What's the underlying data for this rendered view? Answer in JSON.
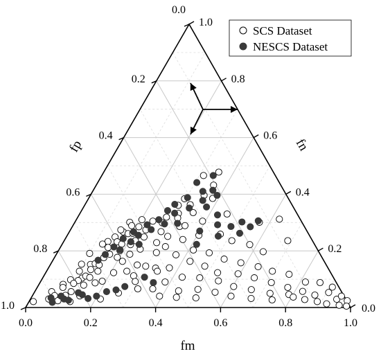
{
  "chart_data": {
    "type": "scatter",
    "subtype": "ternary",
    "axes": {
      "bottom": {
        "label": "fm",
        "ticks": [
          "0.0",
          "0.2",
          "0.4",
          "0.6",
          "0.8",
          "1.0"
        ]
      },
      "left": {
        "label": "fp",
        "ticks": [
          "0.0",
          "0.2",
          "0.4",
          "0.6",
          "0.8",
          "1.0"
        ]
      },
      "right": {
        "label": "fn",
        "ticks": [
          "0.0",
          "0.2",
          "0.4",
          "0.6",
          "0.8",
          "1.0"
        ]
      }
    },
    "grid": true,
    "grid_step": 0.1,
    "legend_position": "top-right",
    "series": [
      {
        "name": "SCS Dataset",
        "marker": "open-circle",
        "color": "#000000",
        "points": [
          {
            "fm": 0.013,
            "fn": 0.021
          },
          {
            "fm": 0.052,
            "fn": 0.056
          },
          {
            "fm": 0.056,
            "fn": 0.03
          },
          {
            "fm": 0.068,
            "fn": 0.042
          },
          {
            "fm": 0.074,
            "fn": 0.082
          },
          {
            "fm": 0.087,
            "fn": 0.024
          },
          {
            "fm": 0.079,
            "fn": 0.071
          },
          {
            "fm": 0.126,
            "fn": 0.021
          },
          {
            "fm": 0.089,
            "fn": 0.098
          },
          {
            "fm": 0.101,
            "fn": 0.043
          },
          {
            "fm": 0.101,
            "fn": 0.128
          },
          {
            "fm": 0.121,
            "fn": 0.104
          },
          {
            "fm": 0.114,
            "fn": 0.095
          },
          {
            "fm": 0.105,
            "fn": 0.085
          },
          {
            "fm": 0.129,
            "fn": 0.111
          },
          {
            "fm": 0.139,
            "fn": 0.079
          },
          {
            "fm": 0.095,
            "fn": 0.153
          },
          {
            "fm": 0.101,
            "fn": 0.191
          },
          {
            "fm": 0.123,
            "fn": 0.152
          },
          {
            "fm": 0.152,
            "fn": 0.176
          },
          {
            "fm": 0.136,
            "fn": 0.155
          },
          {
            "fm": 0.144,
            "fn": 0.106
          },
          {
            "fm": 0.146,
            "fn": 0.041
          },
          {
            "fm": 0.112,
            "fn": 0.056
          },
          {
            "fm": 0.133,
            "fn": 0.134
          },
          {
            "fm": 0.136,
            "fn": 0.233
          },
          {
            "fm": 0.147,
            "fn": 0.212
          },
          {
            "fm": 0.124,
            "fn": 0.224
          },
          {
            "fm": 0.164,
            "fn": 0.188
          },
          {
            "fm": 0.15,
            "fn": 0.249
          },
          {
            "fm": 0.151,
            "fn": 0.15
          },
          {
            "fm": 0.158,
            "fn": 0.128
          },
          {
            "fm": 0.17,
            "fn": 0.087
          },
          {
            "fm": 0.166,
            "fn": 0.267
          },
          {
            "fm": 0.155,
            "fn": 0.274
          },
          {
            "fm": 0.165,
            "fn": 0.232
          },
          {
            "fm": 0.189,
            "fn": 0.201
          },
          {
            "fm": 0.189,
            "fn": 0.093
          },
          {
            "fm": 0.169,
            "fn": 0.301
          },
          {
            "fm": 0.181,
            "fn": 0.289
          },
          {
            "fm": 0.184,
            "fn": 0.261
          },
          {
            "fm": 0.183,
            "fn": 0.224
          },
          {
            "fm": 0.193,
            "fn": 0.177
          },
          {
            "fm": 0.198,
            "fn": 0.262
          },
          {
            "fm": 0.202,
            "fn": 0.31
          },
          {
            "fm": 0.205,
            "fn": 0.285
          },
          {
            "fm": 0.211,
            "fn": 0.222
          },
          {
            "fm": 0.216,
            "fn": 0.163
          },
          {
            "fm": 0.209,
            "fn": 0.123
          },
          {
            "fm": 0.215,
            "fn": 0.03
          },
          {
            "fm": 0.219,
            "fn": 0.236
          },
          {
            "fm": 0.226,
            "fn": 0.188
          },
          {
            "fm": 0.232,
            "fn": 0.274
          },
          {
            "fm": 0.238,
            "fn": 0.305
          },
          {
            "fm": 0.239,
            "fn": 0.249
          },
          {
            "fm": 0.249,
            "fn": 0.206
          },
          {
            "fm": 0.247,
            "fn": 0.128
          },
          {
            "fm": 0.26,
            "fn": 0.051
          },
          {
            "fm": 0.27,
            "fn": 0.299
          },
          {
            "fm": 0.273,
            "fn": 0.319
          },
          {
            "fm": 0.282,
            "fn": 0.268
          },
          {
            "fm": 0.288,
            "fn": 0.229
          },
          {
            "fm": 0.268,
            "fn": 0.15
          },
          {
            "fm": 0.276,
            "fn": 0.112
          },
          {
            "fm": 0.291,
            "fn": 0.092
          },
          {
            "fm": 0.288,
            "fn": 0.361
          },
          {
            "fm": 0.296,
            "fn": 0.384
          },
          {
            "fm": 0.303,
            "fn": 0.332
          },
          {
            "fm": 0.309,
            "fn": 0.316
          },
          {
            "fm": 0.311,
            "fn": 0.251
          },
          {
            "fm": 0.305,
            "fn": 0.194
          },
          {
            "fm": 0.296,
            "fn": 0.146
          },
          {
            "fm": 0.312,
            "fn": 0.066
          },
          {
            "fm": 0.313,
            "fn": 0.466
          },
          {
            "fm": 0.324,
            "fn": 0.363
          },
          {
            "fm": 0.33,
            "fn": 0.286
          },
          {
            "fm": 0.322,
            "fn": 0.215
          },
          {
            "fm": 0.33,
            "fn": 0.139
          },
          {
            "fm": 0.341,
            "fn": 0.128
          },
          {
            "fm": 0.358,
            "fn": 0.066
          },
          {
            "fm": 0.345,
            "fn": 0.289
          },
          {
            "fm": 0.347,
            "fn": 0.335
          },
          {
            "fm": 0.35,
            "fn": 0.396
          },
          {
            "fm": 0.361,
            "fn": 0.432
          },
          {
            "fm": 0.354,
            "fn": 0.478
          },
          {
            "fm": 0.363,
            "fn": 0.24
          },
          {
            "fm": 0.369,
            "fn": 0.186
          },
          {
            "fm": 0.372,
            "fn": 0.14
          },
          {
            "fm": 0.384,
            "fn": 0.09
          },
          {
            "fm": 0.392,
            "fn": 0.04
          },
          {
            "fm": 0.382,
            "fn": 0.385
          },
          {
            "fm": 0.391,
            "fn": 0.305
          },
          {
            "fm": 0.405,
            "fn": 0.255
          },
          {
            "fm": 0.414,
            "fn": 0.203
          },
          {
            "fm": 0.424,
            "fn": 0.163
          },
          {
            "fm": 0.428,
            "fn": 0.107
          },
          {
            "fm": 0.441,
            "fn": 0.059
          },
          {
            "fm": 0.446,
            "fn": 0.036
          },
          {
            "fm": 0.454,
            "fn": 0.33
          },
          {
            "fm": 0.469,
            "fn": 0.259
          },
          {
            "fm": 0.468,
            "fn": 0.193
          },
          {
            "fm": 0.478,
            "fn": 0.146
          },
          {
            "fm": 0.483,
            "fn": 0.105
          },
          {
            "fm": 0.498,
            "fn": 0.064
          },
          {
            "fm": 0.507,
            "fn": 0.034
          },
          {
            "fm": 0.516,
            "fn": 0.236
          },
          {
            "fm": 0.525,
            "fn": 0.171
          },
          {
            "fm": 0.529,
            "fn": 0.123
          },
          {
            "fm": 0.546,
            "fn": 0.094
          },
          {
            "fm": 0.556,
            "fn": 0.054
          },
          {
            "fm": 0.568,
            "fn": 0.301
          },
          {
            "fm": 0.578,
            "fn": 0.222
          },
          {
            "fm": 0.583,
            "fn": 0.158
          },
          {
            "fm": 0.594,
            "fn": 0.119
          },
          {
            "fm": 0.603,
            "fn": 0.074
          },
          {
            "fm": 0.612,
            "fn": 0.04
          },
          {
            "fm": 0.624,
            "fn": 0.312
          },
          {
            "fm": 0.632,
            "fn": 0.197
          },
          {
            "fm": 0.643,
            "fn": 0.144
          },
          {
            "fm": 0.651,
            "fn": 0.105
          },
          {
            "fm": 0.663,
            "fn": 0.063
          },
          {
            "fm": 0.678,
            "fn": 0.032
          },
          {
            "fm": 0.688,
            "fn": 0.236
          },
          {
            "fm": 0.695,
            "fn": 0.128
          },
          {
            "fm": 0.712,
            "fn": 0.088
          },
          {
            "fm": 0.727,
            "fn": 0.05
          },
          {
            "fm": 0.745,
            "fn": 0.027
          },
          {
            "fm": 0.752,
            "fn": 0.117
          },
          {
            "fm": 0.771,
            "fn": 0.071
          },
          {
            "fm": 0.787,
            "fn": 0.046
          },
          {
            "fm": 0.805,
            "fn": 0.037
          },
          {
            "fm": 0.824,
            "fn": 0.057
          },
          {
            "fm": 0.845,
            "fn": 0.028
          },
          {
            "fm": 0.868,
            "fn": 0.044
          },
          {
            "fm": 0.887,
            "fn": 0.021
          },
          {
            "fm": 0.906,
            "fn": 0.053
          },
          {
            "fm": 0.92,
            "fn": 0.013
          },
          {
            "fm": 0.943,
            "fn": 0.029
          },
          {
            "fm": 0.961,
            "fn": 0.008
          },
          {
            "fm": 0.978,
            "fn": 0.024
          },
          {
            "fm": 0.985,
            "fn": 0.005
          },
          {
            "fm": 0.952,
            "fn": 0.04
          },
          {
            "fm": 0.908,
            "fn": 0.072
          },
          {
            "fm": 0.862,
            "fn": 0.088
          },
          {
            "fm": 0.816,
            "fn": 0.09
          }
        ]
      },
      {
        "name": "NESCS Dataset",
        "marker": "filled-circle",
        "color": "#3a3a3a",
        "points": [
          {
            "fm": 0.061,
            "fn": 0.034
          },
          {
            "fm": 0.073,
            "fn": 0.018
          },
          {
            "fm": 0.089,
            "fn": 0.04
          },
          {
            "fm": 0.103,
            "fn": 0.03
          },
          {
            "fm": 0.119,
            "fn": 0.026
          },
          {
            "fm": 0.136,
            "fn": 0.052
          },
          {
            "fm": 0.152,
            "fn": 0.045
          },
          {
            "fm": 0.176,
            "fn": 0.032
          },
          {
            "fm": 0.198,
            "fn": 0.04
          },
          {
            "fm": 0.221,
            "fn": 0.056
          },
          {
            "fm": 0.247,
            "fn": 0.062
          },
          {
            "fm": 0.268,
            "fn": 0.074
          },
          {
            "fm": 0.139,
            "fn": 0.167
          },
          {
            "fm": 0.151,
            "fn": 0.187
          },
          {
            "fm": 0.164,
            "fn": 0.214
          },
          {
            "fm": 0.178,
            "fn": 0.243
          },
          {
            "fm": 0.188,
            "fn": 0.204
          },
          {
            "fm": 0.198,
            "fn": 0.267
          },
          {
            "fm": 0.207,
            "fn": 0.232
          },
          {
            "fm": 0.219,
            "fn": 0.255
          },
          {
            "fm": 0.227,
            "fn": 0.292
          },
          {
            "fm": 0.237,
            "fn": 0.223
          },
          {
            "fm": 0.248,
            "fn": 0.275
          },
          {
            "fm": 0.254,
            "fn": 0.31
          },
          {
            "fm": 0.265,
            "fn": 0.342
          },
          {
            "fm": 0.276,
            "fn": 0.364
          },
          {
            "fm": 0.279,
            "fn": 0.295
          },
          {
            "fm": 0.291,
            "fn": 0.333
          },
          {
            "fm": 0.303,
            "fn": 0.388
          },
          {
            "fm": 0.305,
            "fn": 0.441
          },
          {
            "fm": 0.318,
            "fn": 0.297
          },
          {
            "fm": 0.327,
            "fn": 0.351
          },
          {
            "fm": 0.339,
            "fn": 0.41
          },
          {
            "fm": 0.343,
            "fn": 0.466
          },
          {
            "fm": 0.355,
            "fn": 0.378
          },
          {
            "fm": 0.368,
            "fn": 0.414
          },
          {
            "fm": 0.378,
            "fn": 0.355
          },
          {
            "fm": 0.39,
            "fn": 0.396
          },
          {
            "fm": 0.4,
            "fn": 0.27
          },
          {
            "fm": 0.414,
            "fn": 0.223
          },
          {
            "fm": 0.426,
            "fn": 0.327
          },
          {
            "fm": 0.444,
            "fn": 0.292
          },
          {
            "fm": 0.466,
            "fn": 0.252
          },
          {
            "fm": 0.488,
            "fn": 0.286
          },
          {
            "fm": 0.514,
            "fn": 0.302
          },
          {
            "fm": 0.527,
            "fn": 0.262
          },
          {
            "fm": 0.548,
            "fn": 0.285
          },
          {
            "fm": 0.562,
            "fn": 0.306
          },
          {
            "fm": 0.312,
            "fn": 0.107
          },
          {
            "fm": 0.349,
            "fn": 0.088
          }
        ]
      }
    ]
  }
}
